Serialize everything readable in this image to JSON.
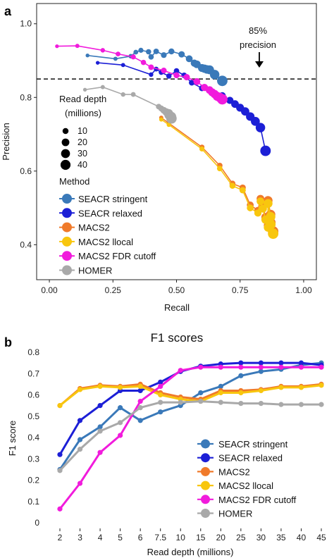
{
  "chart_data": [
    {
      "type": "scatter",
      "panel_label": "a",
      "xlabel": "Recall",
      "ylabel": "Precision",
      "xlim": [
        -0.05,
        1.05
      ],
      "ylim": [
        0.305,
        1.055
      ],
      "xticks": [
        "0.00",
        "0.25",
        "0.50",
        "0.75",
        "1.00"
      ],
      "yticks": [
        "0.4",
        "0.6",
        "0.8",
        "1.0"
      ],
      "threshold": {
        "y": 0.85,
        "style": "dashed"
      },
      "annotation": {
        "line1": "85%",
        "line2": "precision",
        "x": 0.83,
        "y": 0.88
      },
      "size_legend": {
        "title_line1": "Read depth",
        "title_line2": "(millions)",
        "labels": [
          "10",
          "20",
          "30",
          "40"
        ]
      },
      "method_legend_title": "Method",
      "series": [
        {
          "name": "SEACR stringent",
          "color": "#3a79b9",
          "x": [
            0.15,
            0.26,
            0.32,
            0.34,
            0.36,
            0.39,
            0.4,
            0.42,
            0.45,
            0.48,
            0.52,
            0.55,
            0.57,
            0.58,
            0.6,
            0.61,
            0.62,
            0.63,
            0.65,
            0.68
          ],
          "y": [
            0.914,
            0.905,
            0.912,
            0.923,
            0.928,
            0.924,
            0.91,
            0.925,
            0.915,
            0.925,
            0.917,
            0.905,
            0.893,
            0.89,
            0.88,
            0.878,
            0.876,
            0.875,
            0.862,
            0.845
          ],
          "sizes": [
            2,
            3,
            4,
            5,
            6,
            7,
            7.5,
            8,
            9,
            10,
            12,
            15,
            17,
            20,
            22,
            25,
            27,
            30,
            35,
            45
          ]
        },
        {
          "name": "SEACR relaxed",
          "color": "#1c1fd6",
          "x": [
            0.19,
            0.29,
            0.4,
            0.42,
            0.44,
            0.47,
            0.5,
            0.53,
            0.56,
            0.6,
            0.64,
            0.68,
            0.71,
            0.73,
            0.75,
            0.77,
            0.79,
            0.81,
            0.83,
            0.85
          ],
          "y": [
            0.894,
            0.888,
            0.862,
            0.877,
            0.868,
            0.858,
            0.872,
            0.86,
            0.84,
            0.825,
            0.815,
            0.805,
            0.792,
            0.782,
            0.772,
            0.762,
            0.748,
            0.735,
            0.718,
            0.655
          ],
          "sizes": [
            2,
            3,
            4,
            5,
            6,
            7,
            7.5,
            8,
            9,
            10,
            12,
            15,
            17,
            20,
            22,
            25,
            27,
            30,
            35,
            45
          ]
        },
        {
          "name": "MACS2",
          "color": "#f07a2a",
          "x": [
            0.44,
            0.47,
            0.6,
            0.67,
            0.72,
            0.76,
            0.79,
            0.82,
            0.83,
            0.84,
            0.85,
            0.86,
            0.86,
            0.87,
            0.87,
            0.88
          ],
          "y": [
            0.745,
            0.73,
            0.665,
            0.615,
            0.566,
            0.555,
            0.508,
            0.493,
            0.525,
            0.505,
            0.475,
            0.452,
            0.52,
            0.482,
            0.46,
            0.436
          ],
          "sizes": [
            3,
            4,
            6,
            8,
            10,
            12,
            15,
            17,
            20,
            22,
            25,
            27,
            30,
            35,
            40,
            45
          ]
        },
        {
          "name": "MACS2 llocal",
          "color": "#f8c60e",
          "x": [
            0.44,
            0.47,
            0.6,
            0.67,
            0.72,
            0.76,
            0.79,
            0.82,
            0.83,
            0.84,
            0.85,
            0.86,
            0.86,
            0.87,
            0.87,
            0.88
          ],
          "y": [
            0.74,
            0.726,
            0.66,
            0.607,
            0.56,
            0.548,
            0.5,
            0.486,
            0.518,
            0.498,
            0.468,
            0.447,
            0.512,
            0.476,
            0.455,
            0.43
          ],
          "sizes": [
            3,
            4,
            6,
            8,
            10,
            12,
            15,
            17,
            20,
            22,
            25,
            27,
            30,
            35,
            40,
            45
          ]
        },
        {
          "name": "MACS2 FDR cutoff",
          "color": "#f11bdc",
          "x": [
            0.03,
            0.11,
            0.21,
            0.27,
            0.33,
            0.37,
            0.4,
            0.45,
            0.5,
            0.54,
            0.58,
            0.61,
            0.63,
            0.64,
            0.65,
            0.66,
            0.67,
            0.68
          ],
          "y": [
            0.939,
            0.94,
            0.928,
            0.918,
            0.91,
            0.895,
            0.882,
            0.873,
            0.86,
            0.855,
            0.843,
            0.827,
            0.82,
            0.814,
            0.809,
            0.803,
            0.8,
            0.795
          ],
          "sizes": [
            2,
            3,
            4,
            5,
            6,
            7,
            8,
            9,
            10,
            12,
            15,
            17,
            20,
            22,
            25,
            30,
            35,
            45
          ]
        },
        {
          "name": "HOMER",
          "color": "#a9a9a9",
          "x": [
            0.14,
            0.21,
            0.29,
            0.33,
            0.43,
            0.44,
            0.45,
            0.46,
            0.47,
            0.47,
            0.48,
            0.48
          ],
          "y": [
            0.821,
            0.828,
            0.808,
            0.808,
            0.775,
            0.77,
            0.765,
            0.76,
            0.757,
            0.752,
            0.748,
            0.743
          ],
          "sizes": [
            2,
            3,
            4,
            5,
            8,
            10,
            15,
            20,
            25,
            30,
            35,
            45
          ]
        }
      ]
    },
    {
      "type": "line",
      "panel_label": "b",
      "title": "F1 scores",
      "xlabel": "Read depth (millions)",
      "ylabel": "F1 score",
      "ylim": [
        0,
        0.8
      ],
      "yticks": [
        "0",
        "0.1",
        "0.2",
        "0.3",
        "0.4",
        "0.5",
        "0.6",
        "0.7",
        "0.8"
      ],
      "categories": [
        "2",
        "3",
        "4",
        "5",
        "6",
        "7.5",
        "10",
        "15",
        "20",
        "25",
        "30",
        "35",
        "40",
        "45"
      ],
      "series": [
        {
          "name": "SEACR stringent",
          "color": "#3a79b9",
          "values": [
            0.25,
            0.39,
            0.45,
            0.54,
            0.48,
            0.52,
            0.55,
            0.61,
            0.64,
            0.69,
            0.71,
            0.72,
            0.74,
            0.75
          ]
        },
        {
          "name": "SEACR relaxed",
          "color": "#1c1fd6",
          "values": [
            0.32,
            0.48,
            0.55,
            0.62,
            0.62,
            0.66,
            0.71,
            0.735,
            0.745,
            0.75,
            0.75,
            0.75,
            0.75,
            0.74
          ]
        },
        {
          "name": "MACS2",
          "color": "#f07a2a",
          "values": [
            0.55,
            0.63,
            0.645,
            0.64,
            0.65,
            0.61,
            0.59,
            0.58,
            0.62,
            0.62,
            0.625,
            0.64,
            0.64,
            0.65
          ]
        },
        {
          "name": "MACS2 llocal",
          "color": "#f8c60e",
          "values": [
            0.55,
            0.625,
            0.64,
            0.635,
            0.64,
            0.6,
            0.58,
            0.57,
            0.61,
            0.61,
            0.62,
            0.635,
            0.635,
            0.645
          ]
        },
        {
          "name": "MACS2 FDR cutoff",
          "color": "#f11bdc",
          "values": [
            0.065,
            0.185,
            0.33,
            0.41,
            0.57,
            0.64,
            0.715,
            0.73,
            0.73,
            0.73,
            0.73,
            0.73,
            0.73,
            0.73
          ]
        },
        {
          "name": "HOMER",
          "color": "#a9a9a9",
          "values": [
            0.245,
            0.345,
            0.43,
            0.47,
            0.54,
            0.565,
            0.565,
            0.57,
            0.565,
            0.56,
            0.56,
            0.555,
            0.555,
            0.555
          ]
        }
      ]
    }
  ]
}
